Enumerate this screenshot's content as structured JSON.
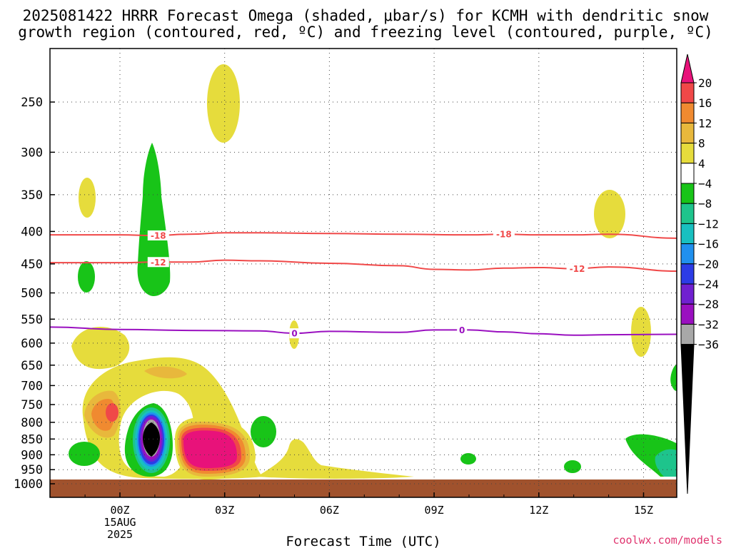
{
  "chart_data": {
    "type": "contour",
    "title_lines": [
      "2025081422 HRRR Forecast Omega (shaded, μbar/s) for KCMH with dendritic snow",
      "growth region (contoured, red, ºC) and freezing level (contoured, purple, ºC)"
    ],
    "xlabel": "Forecast Time (UTC)",
    "credit": "coolwx.com/models",
    "x_ticks": [
      {
        "hour": 0,
        "lines": [
          "00Z",
          "15AUG",
          "2025"
        ]
      },
      {
        "hour": 3,
        "lines": [
          "03Z"
        ]
      },
      {
        "hour": 6,
        "lines": [
          "06Z"
        ]
      },
      {
        "hour": 9,
        "lines": [
          "09Z"
        ]
      },
      {
        "hour": 12,
        "lines": [
          "12Z"
        ]
      },
      {
        "hour": 15,
        "lines": [
          "15Z"
        ]
      }
    ],
    "xlim": [
      -2,
      16
    ],
    "y_ticks": [
      250,
      300,
      350,
      400,
      450,
      500,
      550,
      600,
      650,
      700,
      750,
      800,
      850,
      900,
      950,
      1000
    ],
    "colorbar": {
      "labels": [
        "20",
        "16",
        "12",
        "8",
        "4",
        "−4",
        "−8",
        "−12",
        "−16",
        "−20",
        "−24",
        "−28",
        "−32",
        "−36"
      ],
      "colors": [
        "#e8127a",
        "#f04848",
        "#f08a30",
        "#e8b83c",
        "#e6dc3c",
        "#ffffff",
        "#18c418",
        "#1ec48c",
        "#18c0c0",
        "#2090ee",
        "#2c3ce6",
        "#7020d0",
        "#9a10c0",
        "#a8a8a8",
        "#000000"
      ]
    },
    "contours": [
      {
        "kind": "dgz",
        "color": "#f04848",
        "label": "-18",
        "points": [
          [
            -2,
            405
          ],
          [
            0,
            405
          ],
          [
            1,
            406
          ],
          [
            2,
            404
          ],
          [
            3,
            402
          ],
          [
            4,
            402
          ],
          [
            6,
            403
          ],
          [
            8,
            404
          ],
          [
            10,
            405
          ],
          [
            11,
            404
          ],
          [
            12,
            405
          ],
          [
            13,
            405
          ],
          [
            14,
            404
          ],
          [
            16,
            410
          ]
        ],
        "label_hours": [
          1.1,
          11.0
        ]
      },
      {
        "kind": "dgz",
        "color": "#f04848",
        "label": "-12",
        "points": [
          [
            -2,
            448
          ],
          [
            0,
            448
          ],
          [
            1,
            447
          ],
          [
            2,
            447
          ],
          [
            3,
            444
          ],
          [
            4,
            445
          ],
          [
            6,
            449
          ],
          [
            8,
            453
          ],
          [
            9,
            459
          ],
          [
            10,
            460
          ],
          [
            11,
            457
          ],
          [
            12,
            456
          ],
          [
            13,
            458
          ],
          [
            14,
            455
          ],
          [
            16,
            462
          ]
        ],
        "label_hours": [
          1.1,
          13.1
        ]
      },
      {
        "kind": "freezing",
        "color": "#9a10c0",
        "label": "0",
        "points": [
          [
            -2,
            566
          ],
          [
            0,
            571
          ],
          [
            2,
            573
          ],
          [
            4,
            574
          ],
          [
            5,
            579
          ],
          [
            6,
            575
          ],
          [
            8,
            577
          ],
          [
            9,
            572
          ],
          [
            10,
            572
          ],
          [
            11,
            576
          ],
          [
            12,
            580
          ],
          [
            13,
            583
          ],
          [
            14,
            582
          ],
          [
            16,
            581
          ]
        ],
        "label_hours": [
          5.0,
          9.8
        ]
      }
    ]
  }
}
